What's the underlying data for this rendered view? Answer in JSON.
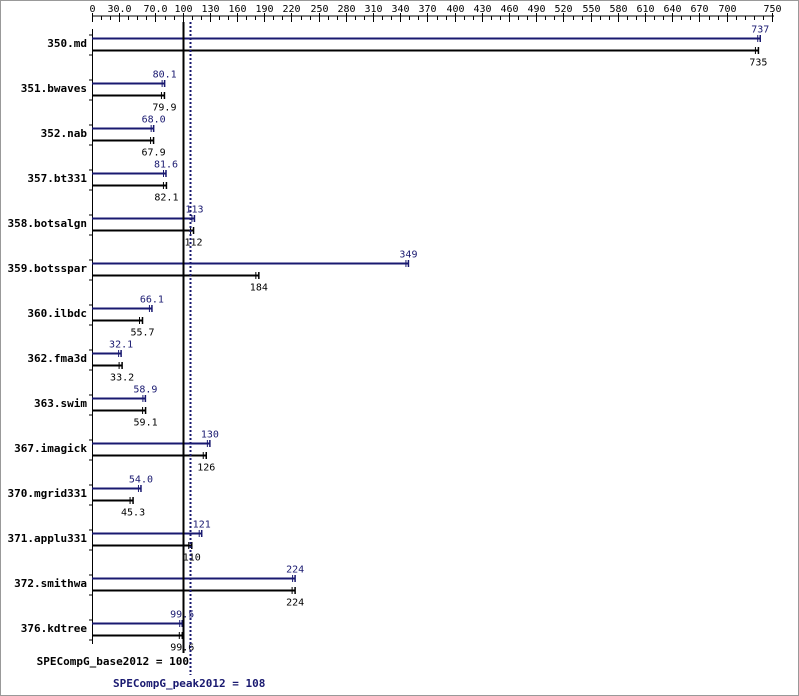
{
  "chart_data": {
    "type": "bar",
    "orientation": "horizontal",
    "xlim": [
      0,
      750
    ],
    "x_tick_labels": [
      "0",
      "30.0",
      "70.0",
      "100",
      "130",
      "160",
      "190",
      "220",
      "250",
      "280",
      "310",
      "340",
      "370",
      "400",
      "430",
      "460",
      "490",
      "520",
      "550",
      "580",
      "610",
      "640",
      "670",
      "700",
      "750"
    ],
    "x_tick_values": [
      0,
      30,
      70,
      100,
      130,
      160,
      190,
      220,
      250,
      280,
      310,
      340,
      370,
      400,
      430,
      460,
      490,
      520,
      550,
      580,
      610,
      640,
      670,
      700,
      750
    ],
    "categories": [
      "350.md",
      "351.bwaves",
      "352.nab",
      "357.bt331",
      "358.botsalgn",
      "359.botsspar",
      "360.ilbdc",
      "362.fma3d",
      "363.swim",
      "367.imagick",
      "370.mgrid331",
      "371.applu331",
      "372.smithwa",
      "376.kdtree"
    ],
    "series": [
      {
        "key": "peak",
        "color": "#191970",
        "labels": [
          "737",
          "80.1",
          "68.0",
          "81.6",
          "113",
          "349",
          "66.1",
          "32.1",
          "58.9",
          "130",
          "54.0",
          "121",
          "224",
          "99.5"
        ],
        "values": [
          737,
          80.1,
          68.0,
          81.6,
          113,
          349,
          66.1,
          32.1,
          58.9,
          130,
          54.0,
          121,
          224,
          99.5
        ]
      },
      {
        "key": "base",
        "color": "#000000",
        "labels": [
          "735",
          "79.9",
          "67.9",
          "82.1",
          "112",
          "184",
          "55.7",
          "33.2",
          "59.1",
          "126",
          "45.3",
          "110",
          "224",
          "99.6"
        ],
        "values": [
          735,
          79.9,
          67.9,
          82.1,
          112,
          184,
          55.7,
          33.2,
          59.1,
          126,
          45.3,
          110,
          224,
          99.6
        ]
      }
    ],
    "reference_lines": [
      {
        "key": "base",
        "value": 100,
        "label": "SPECompG_base2012 = 100",
        "style": "solid",
        "color": "#000000"
      },
      {
        "key": "peak",
        "value": 108,
        "label": "SPECompG_peak2012 = 108",
        "style": "dotted",
        "color": "#191970"
      }
    ],
    "grid": false,
    "legend": "none"
  }
}
